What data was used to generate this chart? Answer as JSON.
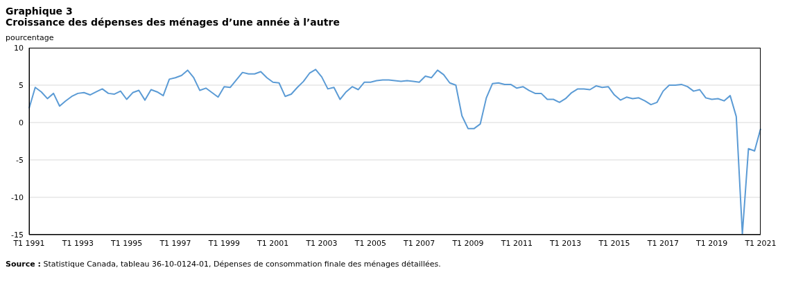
{
  "chart_data": {
    "type": "line",
    "title": "Graphique 3",
    "subtitle": "Croissance des dépenses des ménages d’une année à l’autre",
    "ylabel": "pourcentage",
    "categories": [
      "T1 1991",
      null,
      null,
      null,
      null,
      null,
      null,
      null,
      "T1 1993",
      null,
      null,
      null,
      null,
      null,
      null,
      null,
      "T1 1995",
      null,
      null,
      null,
      null,
      null,
      null,
      null,
      "T1 1997",
      null,
      null,
      null,
      null,
      null,
      null,
      null,
      "T1 1999",
      null,
      null,
      null,
      null,
      null,
      null,
      null,
      "T1 2001",
      null,
      null,
      null,
      null,
      null,
      null,
      null,
      "T1 2003",
      null,
      null,
      null,
      null,
      null,
      null,
      null,
      "T1 2005",
      null,
      null,
      null,
      null,
      null,
      null,
      null,
      "T1 2007",
      null,
      null,
      null,
      null,
      null,
      null,
      null,
      "T1 2009",
      null,
      null,
      null,
      null,
      null,
      null,
      null,
      "T1 2011",
      null,
      null,
      null,
      null,
      null,
      null,
      null,
      "T1 2013",
      null,
      null,
      null,
      null,
      null,
      null,
      null,
      "T1 2015",
      null,
      null,
      null,
      null,
      null,
      null,
      null,
      "T1 2017",
      null,
      null,
      null,
      null,
      null,
      null,
      null,
      "T1 2019",
      null,
      null,
      null,
      null,
      null,
      null,
      null,
      "T1 2021"
    ],
    "series": [
      {
        "color": "#5b9bd5",
        "values": [
          1.9,
          4.7,
          4.1,
          3.2,
          3.9,
          2.2,
          2.9,
          3.5,
          3.9,
          4.0,
          3.7,
          4.1,
          4.5,
          3.9,
          3.8,
          4.2,
          3.1,
          4.0,
          4.3,
          3.0,
          4.4,
          4.1,
          3.6,
          5.8,
          6.0,
          6.3,
          7.0,
          6.0,
          4.3,
          4.6,
          4.0,
          3.4,
          4.8,
          4.7,
          5.7,
          6.7,
          6.5,
          6.5,
          6.8,
          6.0,
          5.4,
          5.3,
          3.5,
          3.8,
          4.7,
          5.5,
          6.6,
          7.1,
          6.1,
          4.5,
          4.7,
          3.1,
          4.1,
          4.8,
          4.4,
          5.4,
          5.4,
          5.6,
          5.7,
          5.7,
          5.6,
          5.5,
          5.6,
          5.5,
          5.4,
          6.2,
          6.0,
          7.0,
          6.4,
          5.3,
          5.0,
          0.9,
          -0.8,
          -0.8,
          -0.2,
          3.3,
          5.2,
          5.3,
          5.1,
          5.1,
          4.6,
          4.8,
          4.3,
          3.9,
          3.9,
          3.1,
          3.1,
          2.7,
          3.2,
          4.0,
          4.5,
          4.5,
          4.4,
          4.9,
          4.7,
          4.8,
          3.7,
          3.0,
          3.4,
          3.2,
          3.3,
          2.9,
          2.4,
          2.7,
          4.2,
          5.0,
          5.0,
          5.1,
          4.8,
          4.2,
          4.4,
          3.3,
          3.1,
          3.2,
          2.9,
          3.6,
          0.8,
          -14.9,
          -3.5,
          -3.8,
          -0.8
        ]
      }
    ],
    "ylim": [
      -15,
      10
    ],
    "yticks": [
      -15,
      -10,
      -5,
      0,
      5,
      10
    ],
    "grid": "y",
    "marker": "none",
    "line_style": "solid",
    "annotations": [
      "Source : Statistique Canada, tableau 36-10-0124-01, Dépenses de consommation finale des ménages détaillées."
    ]
  }
}
